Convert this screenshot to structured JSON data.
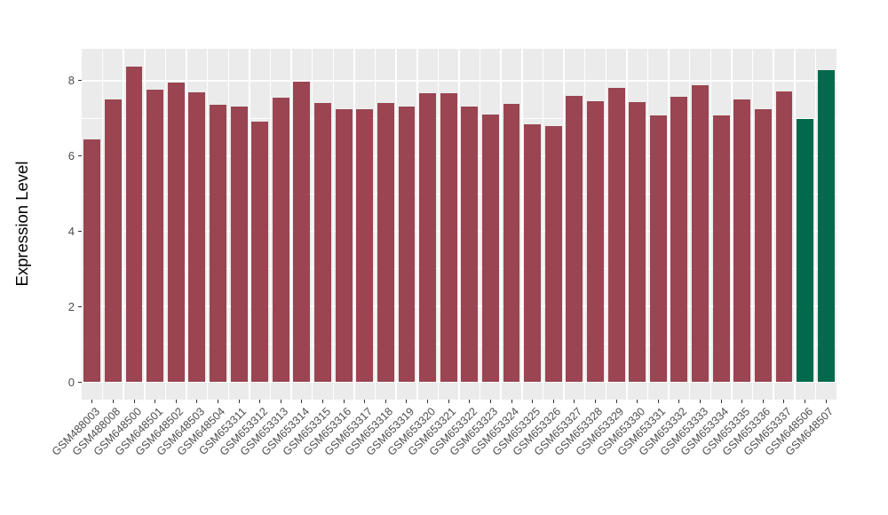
{
  "figure": {
    "background": "#FFFFFF",
    "panel_background": "#EBEBEB",
    "grid_major_color": "#FFFFFF",
    "grid_minor_color": "#FFFFFF",
    "tick_mark_color": "#333333",
    "tick_label_color": "#4D4D4D",
    "axis_title_color": "#000000"
  },
  "chart_data": {
    "type": "bar",
    "title": "",
    "xlabel": "",
    "ylabel": "Expression Level",
    "y_ticks": [
      0,
      2,
      4,
      6,
      8
    ],
    "y_minor_ticks": [
      1,
      3,
      5,
      7
    ],
    "ylim": [
      -0.47,
      8.84
    ],
    "grid": true,
    "legend": false,
    "x_tick_angle_deg": 45,
    "bar_width_ratio": 0.8,
    "default_color": "#9A4551",
    "highlight_color": "#02694C",
    "highlighted_categories": [
      "GSM648506",
      "GSM648507"
    ],
    "categories": [
      "GSM488003",
      "GSM488008",
      "GSM648500",
      "GSM648501",
      "GSM648502",
      "GSM648503",
      "GSM648504",
      "GSM653311",
      "GSM653312",
      "GSM653313",
      "GSM653314",
      "GSM653315",
      "GSM653316",
      "GSM653317",
      "GSM653318",
      "GSM653319",
      "GSM653320",
      "GSM653321",
      "GSM653322",
      "GSM653323",
      "GSM653324",
      "GSM653325",
      "GSM653326",
      "GSM653327",
      "GSM653328",
      "GSM653329",
      "GSM653330",
      "GSM653331",
      "GSM653332",
      "GSM653333",
      "GSM653334",
      "GSM653335",
      "GSM653336",
      "GSM653337",
      "GSM648506",
      "GSM648507"
    ],
    "values": [
      6.43,
      7.51,
      8.38,
      7.76,
      7.95,
      7.69,
      7.35,
      7.32,
      6.91,
      7.54,
      7.96,
      7.41,
      7.23,
      7.23,
      7.4,
      7.31,
      7.67,
      7.67,
      7.3,
      7.11,
      7.38,
      6.84,
      6.79,
      7.59,
      7.46,
      7.8,
      7.43,
      7.08,
      7.57,
      7.88,
      7.08,
      7.51,
      7.23,
      7.72,
      6.99,
      8.28
    ]
  }
}
